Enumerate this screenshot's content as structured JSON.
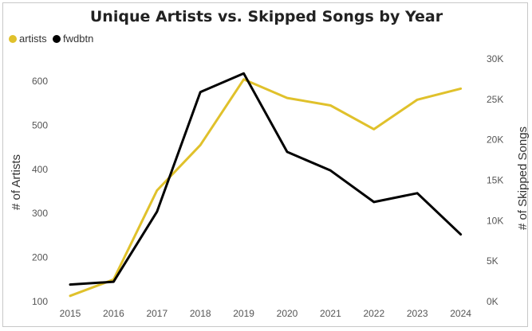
{
  "colors": {
    "artists": "#E0C12B",
    "fwdbtn": "#000000",
    "frame": "#C8C8C8"
  },
  "chart_data": {
    "type": "line",
    "title": "Unique Artists vs. Skipped Songs by Year",
    "x": [
      "2015",
      "2016",
      "2017",
      "2018",
      "2019",
      "2020",
      "2021",
      "2022",
      "2023",
      "2024"
    ],
    "y_left": {
      "label": "# of Artists",
      "ticks": [
        "100",
        "200",
        "300",
        "400",
        "500",
        "600"
      ],
      "ylim": [
        100,
        640
      ]
    },
    "y_right": {
      "label": "# of Skipped Songs",
      "ticks": [
        "0K",
        "5K",
        "10K",
        "15K",
        "20K",
        "25K",
        "30K"
      ],
      "ylim": [
        0,
        30000
      ]
    },
    "series": [
      {
        "name": "artists",
        "axis": "left",
        "color": "#E0C12B",
        "values": [
          113,
          150,
          352,
          455,
          604,
          562,
          545,
          491,
          558,
          583
        ]
      },
      {
        "name": "fwdbtn",
        "axis": "right",
        "color": "#000000",
        "values": [
          2100,
          2450,
          11100,
          25900,
          28200,
          18500,
          16200,
          12300,
          13400,
          8300
        ]
      }
    ],
    "legend_position": "top-left",
    "grid": false
  }
}
